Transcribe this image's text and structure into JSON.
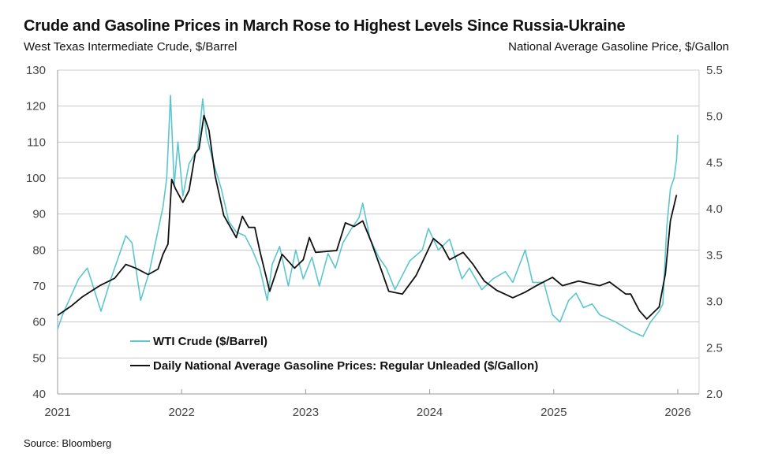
{
  "title": "Crude and Gasoline Prices in March Rose to Highest Levels Since Russia-Ukraine",
  "source": "Source: Bloomberg",
  "chart_data": {
    "type": "line",
    "title": "Crude and Gasoline Prices in March Rose to Highest Levels Since Russia-Ukraine",
    "ylabel": "West Texas Intermediate Crude, $/Barrel",
    "y2label": "National Average Gasoline Price, $/Gallon",
    "xlim": [
      2021,
      2026
    ],
    "ylim": [
      40,
      130
    ],
    "y2lim": [
      2.0,
      5.5
    ],
    "x_ticks": [
      "2021",
      "2022",
      "2023",
      "2024",
      "2025",
      "2026"
    ],
    "y_ticks": [
      "40",
      "50",
      "60",
      "70",
      "80",
      "90",
      "100",
      "110",
      "120",
      "130"
    ],
    "y2_ticks": [
      "2.0",
      "2.5",
      "3.0",
      "3.5",
      "4.0",
      "4.5",
      "5.0",
      "5.5"
    ],
    "grid": true,
    "legend_position": "bottom-left",
    "colors": {
      "wti": "#5cc6cd",
      "gasoline": "#111111"
    },
    "series": [
      {
        "name": "WTI Crude ($/Barrel)",
        "axis": "left",
        "color": "#5cc6cd",
        "x": [
          2021.0,
          2021.04,
          2021.17,
          2021.24,
          2021.35,
          2021.43,
          2021.55,
          2021.6,
          2021.67,
          2021.74,
          2021.85,
          2021.88,
          2021.91,
          2021.94,
          2021.97,
          2022.01,
          2022.06,
          2022.13,
          2022.17,
          2022.2,
          2022.25,
          2022.32,
          2022.38,
          2022.44,
          2022.51,
          2022.57,
          2022.63,
          2022.69,
          2022.73,
          2022.79,
          2022.86,
          2022.92,
          2022.98,
          2023.05,
          2023.11,
          2023.18,
          2023.24,
          2023.3,
          2023.37,
          2023.43,
          2023.46,
          2023.52,
          2023.59,
          2023.65,
          2023.72,
          2023.78,
          2023.84,
          2023.94,
          2023.99,
          2024.07,
          2024.16,
          2024.26,
          2024.32,
          2024.42,
          2024.51,
          2024.61,
          2024.67,
          2024.77,
          2024.83,
          2024.92,
          2024.99,
          2025.05,
          2025.12,
          2025.18,
          2025.24,
          2025.31,
          2025.37,
          2025.5,
          2025.62,
          2025.72,
          2025.78,
          2025.85,
          2025.88,
          2025.91,
          2025.94,
          2025.97,
          2025.99,
          2026.0
        ],
        "y": [
          58,
          62,
          72,
          75,
          63,
          72,
          84,
          82,
          66,
          74,
          92,
          100,
          123,
          98,
          110,
          95,
          104,
          108,
          122,
          112,
          105,
          97,
          88,
          85,
          84,
          80,
          75,
          66,
          76,
          81,
          70,
          80,
          72,
          78,
          70,
          79,
          75,
          82,
          86,
          89,
          93,
          83,
          78,
          75,
          69,
          73,
          77,
          80,
          86,
          80,
          83,
          72,
          75,
          69,
          72,
          74,
          71,
          80,
          71,
          71,
          62,
          60,
          66,
          68,
          64,
          65,
          62,
          60,
          57.5,
          56,
          60,
          63,
          65,
          86,
          97,
          100,
          105,
          112
        ]
      },
      {
        "name": "Daily National Average Gasoline Prices: Regular Unleaded ($/Gallon)",
        "axis": "right",
        "color": "#111111",
        "x": [
          2021.0,
          2021.11,
          2021.2,
          2021.34,
          2021.46,
          2021.55,
          2021.63,
          2021.73,
          2021.81,
          2021.85,
          2021.89,
          2021.92,
          2021.95,
          2022.01,
          2022.06,
          2022.11,
          2022.14,
          2022.18,
          2022.22,
          2022.27,
          2022.34,
          2022.44,
          2022.49,
          2022.54,
          2022.59,
          2022.63,
          2022.71,
          2022.81,
          2022.91,
          2022.98,
          2023.03,
          2023.08,
          2023.25,
          2023.32,
          2023.39,
          2023.46,
          2023.53,
          2023.62,
          2023.67,
          2023.78,
          2023.89,
          2024.03,
          2024.1,
          2024.16,
          2024.27,
          2024.35,
          2024.44,
          2024.54,
          2024.67,
          2024.77,
          2024.86,
          2024.99,
          2025.07,
          2025.2,
          2025.37,
          2025.45,
          2025.58,
          2025.62,
          2025.69,
          2025.75,
          2025.85,
          2025.9,
          2025.94,
          2025.99
        ],
        "y": [
          2.85,
          2.95,
          3.05,
          3.17,
          3.25,
          3.4,
          3.36,
          3.29,
          3.35,
          3.51,
          3.62,
          4.32,
          4.22,
          4.07,
          4.2,
          4.6,
          4.65,
          5.01,
          4.85,
          4.36,
          3.93,
          3.69,
          3.92,
          3.8,
          3.8,
          3.55,
          3.11,
          3.51,
          3.36,
          3.45,
          3.69,
          3.53,
          3.55,
          3.85,
          3.81,
          3.87,
          3.64,
          3.3,
          3.11,
          3.08,
          3.28,
          3.68,
          3.6,
          3.45,
          3.53,
          3.4,
          3.22,
          3.12,
          3.04,
          3.1,
          3.17,
          3.26,
          3.17,
          3.22,
          3.17,
          3.21,
          3.08,
          3.08,
          2.9,
          2.81,
          2.94,
          3.3,
          3.87,
          4.15
        ]
      }
    ]
  }
}
